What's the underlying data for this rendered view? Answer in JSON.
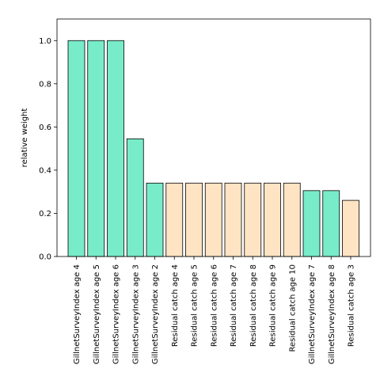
{
  "chart_data": {
    "type": "bar",
    "title": "",
    "xlabel": "",
    "ylabel": "relative weight",
    "ylim": [
      0,
      1.1
    ],
    "yticks": [
      0.0,
      0.2,
      0.4,
      0.6,
      0.8,
      1.0
    ],
    "ytick_labels": [
      "0.0",
      "0.2",
      "0.4",
      "0.6",
      "0.8",
      "1.0"
    ],
    "grid": false,
    "categories": [
      "GillnetSurveyIndex age 4",
      "GillnetSurveyIndex age 5",
      "GillnetSurveyIndex age 6",
      "GillnetSurveyIndex age 3",
      "GillnetSurveyIndex age 2",
      "Residual catch age 4",
      "Residual catch age 5",
      "Residual catch age 6",
      "Residual catch age 7",
      "Residual catch age 8",
      "Residual catch age 9",
      "Residual catch age 10",
      "GillnetSurveyIndex age 7",
      "GillnetSurveyIndex age 8",
      "Residual catch age 3"
    ],
    "values": [
      1.0,
      1.0,
      1.0,
      0.545,
      0.34,
      0.34,
      0.34,
      0.34,
      0.34,
      0.34,
      0.34,
      0.34,
      0.305,
      0.305,
      0.26
    ],
    "groups": [
      "survey",
      "survey",
      "survey",
      "survey",
      "survey",
      "catch",
      "catch",
      "catch",
      "catch",
      "catch",
      "catch",
      "catch",
      "survey",
      "survey",
      "catch"
    ],
    "colors": {
      "survey": "#78ecc8",
      "catch": "#ffe4c4"
    }
  }
}
